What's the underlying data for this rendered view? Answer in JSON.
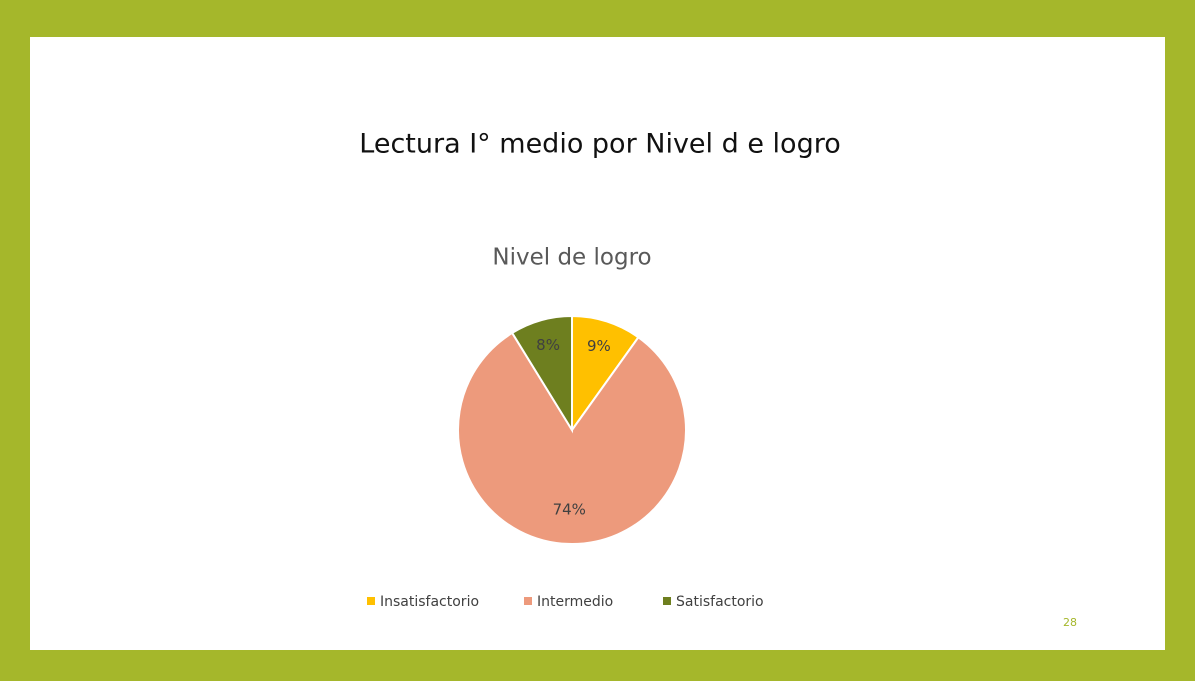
{
  "slide_title": "Lectura I° medio por  Nivel d e logro",
  "page_number": 28,
  "chart_data": {
    "type": "pie",
    "title": "Nivel de logro",
    "categories": [
      "Insatisfactorio",
      "Intermedio",
      "Satisfactorio"
    ],
    "values": [
      9,
      74,
      8
    ],
    "value_labels": [
      "9%",
      "74%",
      "8%"
    ],
    "colors": [
      "#ffc000",
      "#ed9a7c",
      "#6e7f1f"
    ],
    "legend": "bottom"
  }
}
